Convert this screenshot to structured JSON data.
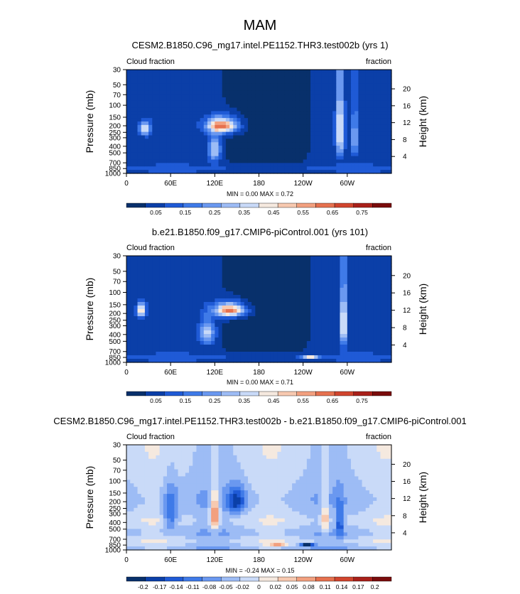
{
  "figure": {
    "title": "MAM"
  },
  "colors": {
    "diverging": [
      "#08306b",
      "#0b3fa8",
      "#1f5ad6",
      "#3f7ae8",
      "#6a98f0",
      "#9dbcf5",
      "#c9daf8",
      "#f5e9df",
      "#f7c9b0",
      "#f2a07f",
      "#e6714f",
      "#d1452e",
      "#a9201a",
      "#7a0c0c"
    ]
  },
  "chart_data": [
    {
      "type": "heatmap",
      "title": "CESM2.B1850.C96_mg17.intel.PE1152.THR3.test002b (yrs 1)",
      "left_label": "Cloud fraction",
      "right_label": "fraction",
      "ylabel": "Pressure (mb)",
      "ylabel_right": "Height (km)",
      "x_ticks": [
        "0",
        "60E",
        "120E",
        "180",
        "120W",
        "60W"
      ],
      "y_ticks": [
        "1000",
        "850",
        "700",
        "500",
        "400",
        "300",
        "250",
        "200",
        "150",
        "100",
        "70",
        "50",
        "30"
      ],
      "height_ticks": [
        "20",
        "16",
        "12",
        "8",
        "4"
      ],
      "stats": {
        "min_label": "MIN =",
        "min": "0.00",
        "max_label": "MAX =",
        "max": "0.72"
      },
      "colorbar": {
        "labels": [
          "0.05",
          "0.15",
          "0.25",
          "0.35",
          "0.45",
          "0.55",
          "0.65",
          "0.75"
        ],
        "range": [
          0.0,
          0.8
        ]
      },
      "features": [
        {
          "lon": 25,
          "p": 220,
          "amp": 0.35,
          "wlon": 8,
          "wp": 50
        },
        {
          "lon": 130,
          "p": 200,
          "amp": 0.55,
          "wlon": 20,
          "wp": 50
        },
        {
          "lon": 120,
          "p": 450,
          "amp": 0.3,
          "wlon": 8,
          "wp": 200
        },
        {
          "lon": 290,
          "p": 250,
          "amp": 0.4,
          "wlon": 5,
          "wp": 250
        },
        {
          "lon": 310,
          "p": 300,
          "amp": 0.25,
          "wlon": 4,
          "wp": 200
        }
      ]
    },
    {
      "type": "heatmap",
      "title": "b.e21.B1850.f09_g17.CMIP6-piControl.001 (yrs 101)",
      "left_label": "Cloud fraction",
      "right_label": "fraction",
      "ylabel": "Pressure (mb)",
      "ylabel_right": "Height (km)",
      "x_ticks": [
        "0",
        "60E",
        "120E",
        "180",
        "120W",
        "60W"
      ],
      "y_ticks": [
        "1000",
        "850",
        "700",
        "500",
        "400",
        "300",
        "250",
        "200",
        "150",
        "100",
        "70",
        "50",
        "30"
      ],
      "height_ticks": [
        "20",
        "16",
        "12",
        "8",
        "4"
      ],
      "stats": {
        "min_label": "MIN =",
        "min": "0.00",
        "max_label": "MAX =",
        "max": "0.71"
      },
      "colorbar": {
        "labels": [
          "0.05",
          "0.15",
          "0.25",
          "0.35",
          "0.45",
          "0.55",
          "0.65",
          "0.75"
        ],
        "range": [
          0.0,
          0.8
        ]
      },
      "features": [
        {
          "lon": 20,
          "p": 180,
          "amp": 0.4,
          "wlon": 6,
          "wp": 40
        },
        {
          "lon": 140,
          "p": 180,
          "amp": 0.55,
          "wlon": 20,
          "wp": 40
        },
        {
          "lon": 110,
          "p": 380,
          "amp": 0.3,
          "wlon": 10,
          "wp": 150
        },
        {
          "lon": 250,
          "p": 850,
          "amp": 0.4,
          "wlon": 10,
          "wp": 30
        },
        {
          "lon": 295,
          "p": 300,
          "amp": 0.45,
          "wlon": 4,
          "wp": 250
        }
      ]
    },
    {
      "type": "heatmap",
      "title": "CESM2.B1850.C96_mg17.intel.PE1152.THR3.test002b - b.e21.B1850.f09_g17.CMIP6-piControl.001",
      "left_label": "Cloud fraction",
      "right_label": "fraction",
      "ylabel": "Pressure (mb)",
      "ylabel_right": "Height (km)",
      "x_ticks": [
        "0",
        "60E",
        "120E",
        "180",
        "120W",
        "60W"
      ],
      "y_ticks": [
        "1000",
        "850",
        "700",
        "500",
        "400",
        "300",
        "250",
        "200",
        "150",
        "100",
        "70",
        "50",
        "30"
      ],
      "height_ticks": [
        "20",
        "16",
        "12",
        "8",
        "4"
      ],
      "stats": {
        "min_label": "MIN =",
        "min": "-0.24",
        "max_label": "MAX =",
        "max": "0.15"
      },
      "colorbar": {
        "labels": [
          "-0.2",
          "-0.17",
          "-0.14",
          "-0.11",
          "-0.08",
          "-0.05",
          "-0.02",
          "0",
          "0.02",
          "0.05",
          "0.08",
          "0.11",
          "0.14",
          "0.17",
          "0.2"
        ],
        "range": [
          -0.2,
          0.2
        ]
      },
      "features": [
        {
          "lon": 120,
          "p": 300,
          "amp": 0.14,
          "wlon": 6,
          "wp": 200
        },
        {
          "lon": 205,
          "p": 850,
          "amp": 0.1,
          "wlon": 12,
          "wp": 25
        },
        {
          "lon": 245,
          "p": 850,
          "amp": -0.22,
          "wlon": 8,
          "wp": 25
        },
        {
          "lon": 270,
          "p": 350,
          "amp": 0.09,
          "wlon": 5,
          "wp": 250
        },
        {
          "lon": 290,
          "p": 400,
          "amp": -0.12,
          "wlon": 4,
          "wp": 200
        },
        {
          "lon": 60,
          "p": 300,
          "amp": -0.1,
          "wlon": 10,
          "wp": 200
        },
        {
          "lon": 150,
          "p": 200,
          "amp": -0.12,
          "wlon": 12,
          "wp": 80
        }
      ]
    }
  ]
}
